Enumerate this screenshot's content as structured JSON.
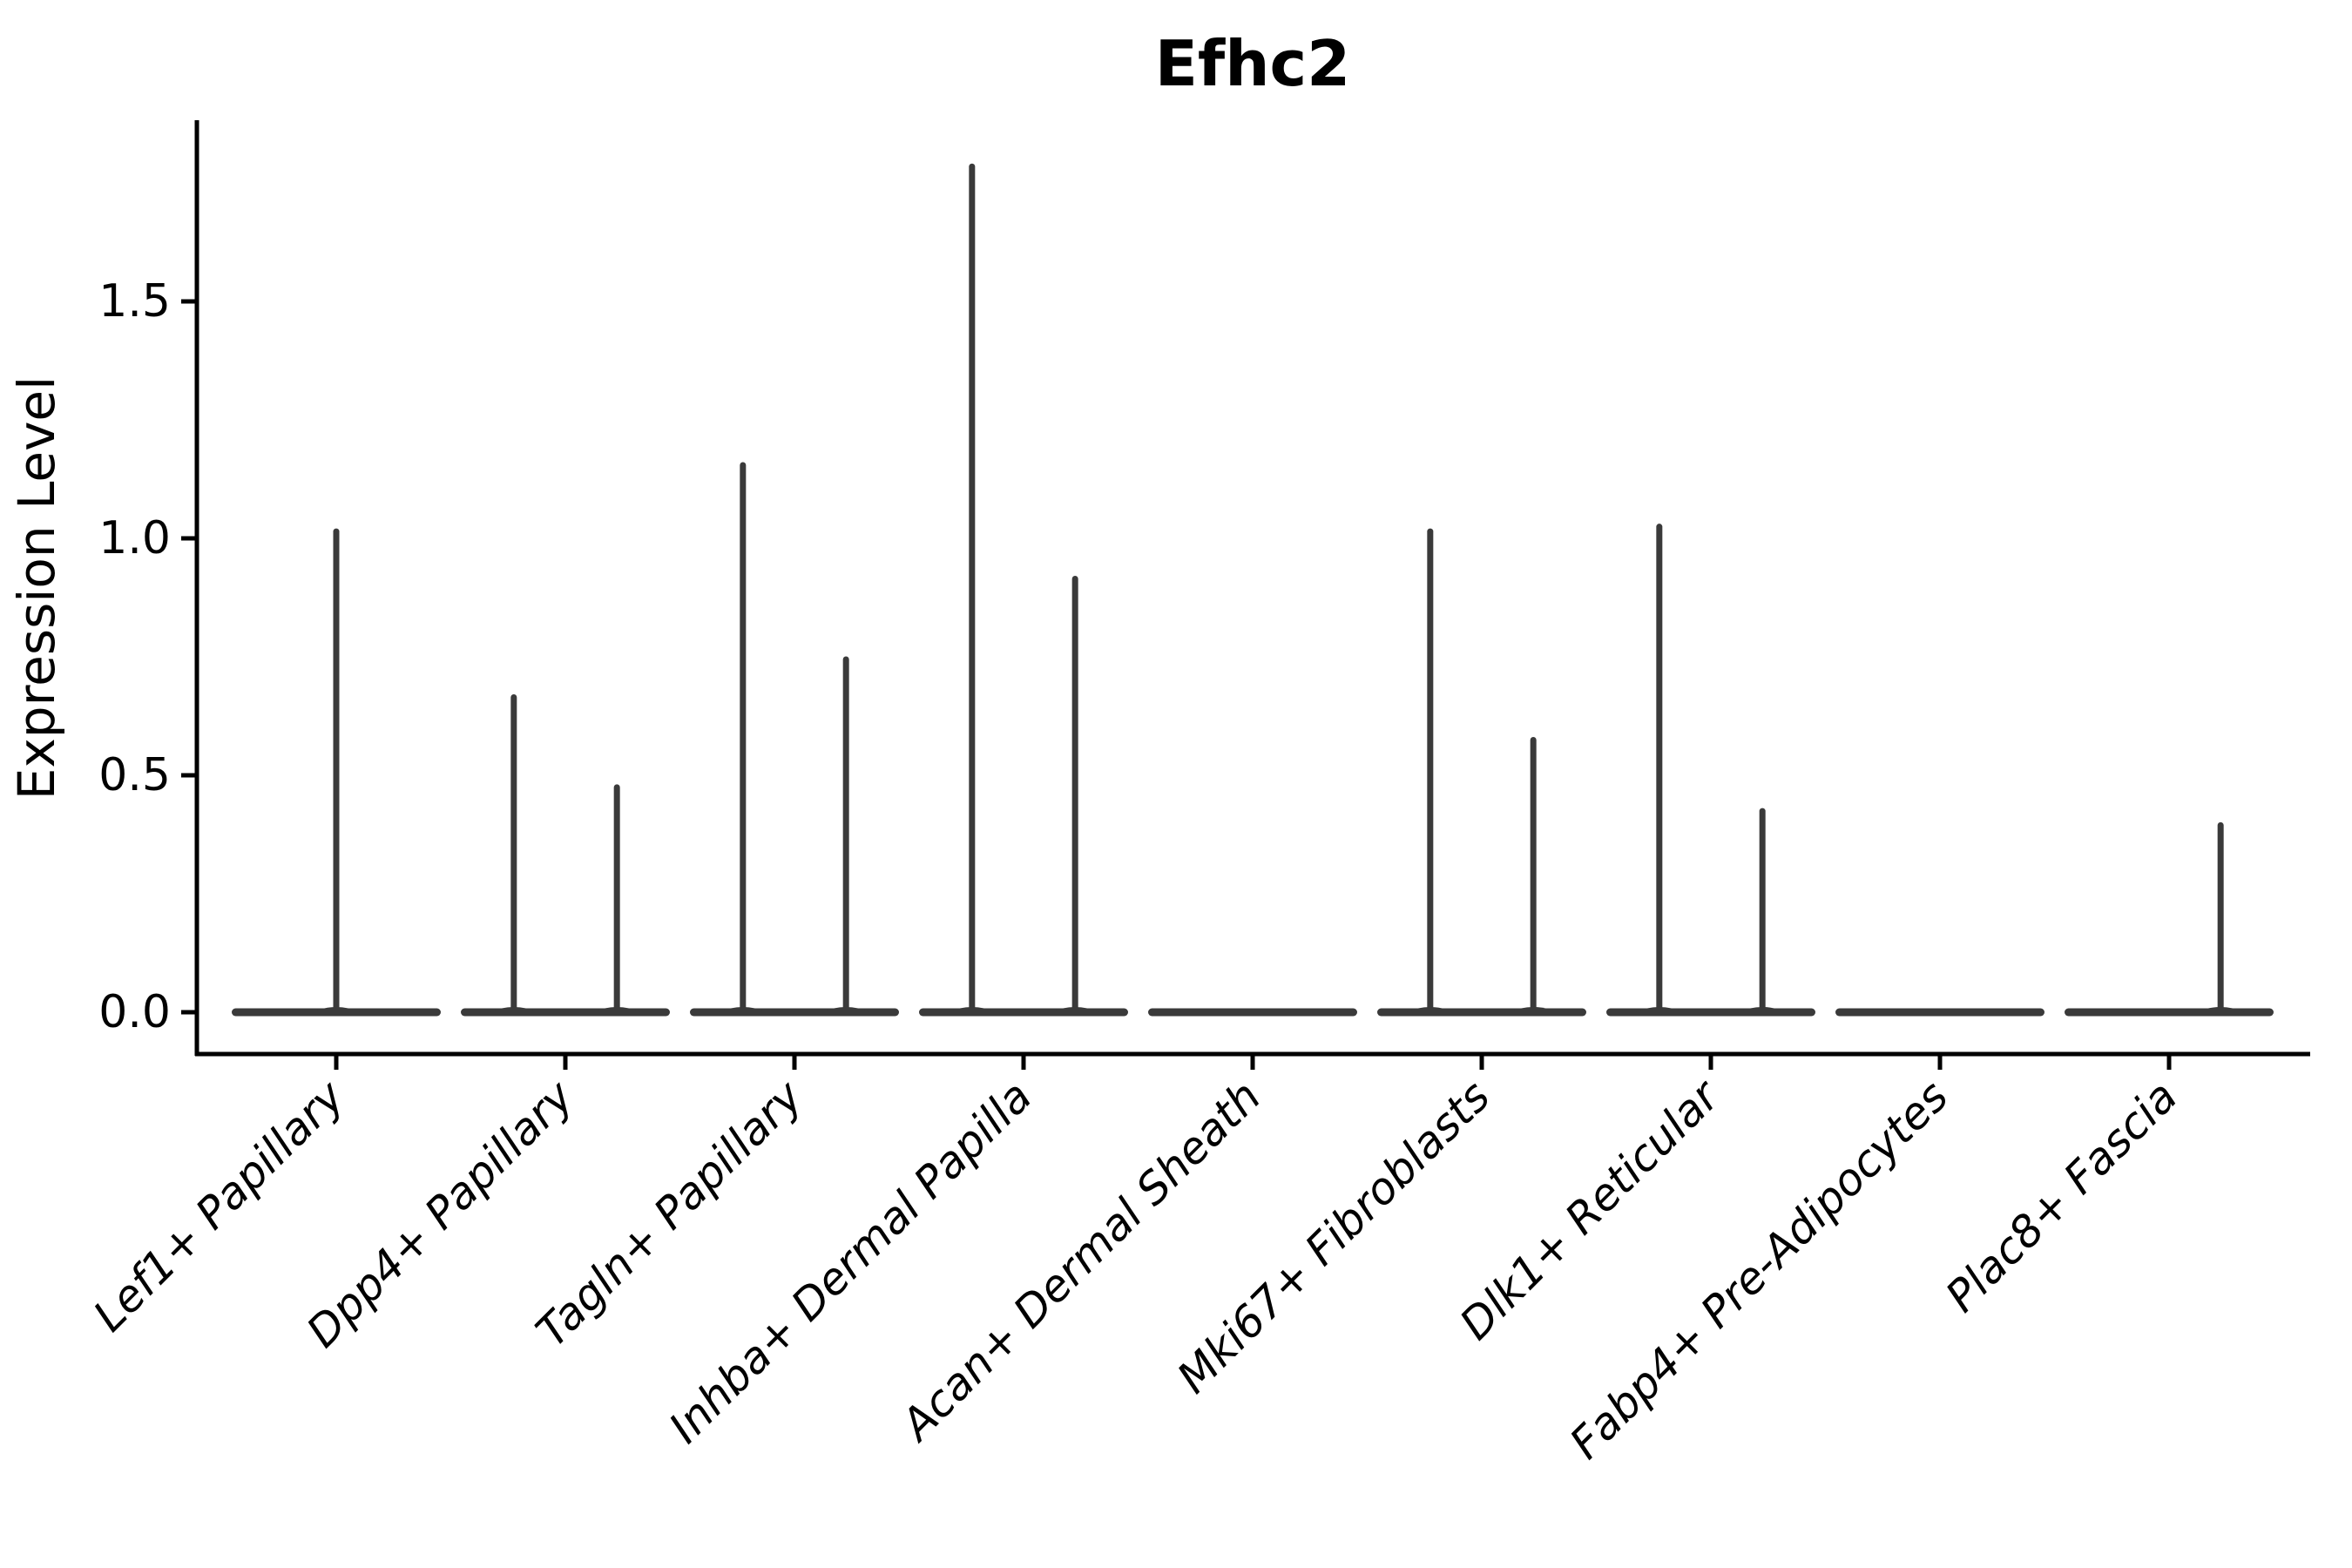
{
  "title": "Efhc2",
  "chart_data": {
    "type": "violin",
    "title": "Efhc2",
    "xlabel": "",
    "ylabel": "Expression Level",
    "ylim": [
      0,
      1.87
    ],
    "grid": false,
    "legend": "none",
    "y_ticks": [
      {
        "label": "0.0",
        "value": 0.0
      },
      {
        "label": "0.5",
        "value": 0.5
      },
      {
        "label": "1.0",
        "value": 1.0
      },
      {
        "label": "1.5",
        "value": 1.5
      }
    ],
    "categories": [
      "Lef1+ Papillary",
      "Dpp4+ Papillary",
      "Tagln+ Papillary",
      "Inhba+ Dermal Papilla",
      "Acan+ Dermal Sheath",
      "Mki67+ Fibroblasts",
      "Dlk1+ Reticular",
      "Fabp4+ Pre-Adipocytes",
      "Plac8+ Fascia"
    ],
    "groups": [
      {
        "category": "Lef1+ Papillary",
        "baseline_value": 0.0,
        "violins": [
          {
            "offset": 0.0,
            "max": 1.02
          }
        ]
      },
      {
        "category": "Dpp4+ Papillary",
        "baseline_value": 0.0,
        "violins": [
          {
            "offset": -0.225,
            "max": 0.67
          },
          {
            "offset": 0.225,
            "max": 0.48
          }
        ]
      },
      {
        "category": "Tagln+ Papillary",
        "baseline_value": 0.0,
        "violins": [
          {
            "offset": -0.225,
            "max": 1.16
          },
          {
            "offset": 0.225,
            "max": 0.75
          }
        ]
      },
      {
        "category": "Inhba+ Dermal Papilla",
        "baseline_value": 0.0,
        "violins": [
          {
            "offset": -0.225,
            "max": 1.79
          },
          {
            "offset": 0.225,
            "max": 0.92
          }
        ]
      },
      {
        "category": "Acan+ Dermal Sheath",
        "baseline_value": 0.0,
        "violins": []
      },
      {
        "category": "Mki67+ Fibroblasts",
        "baseline_value": 0.0,
        "violins": [
          {
            "offset": -0.225,
            "max": 1.02
          },
          {
            "offset": 0.225,
            "max": 0.58
          }
        ]
      },
      {
        "category": "Dlk1+ Reticular",
        "baseline_value": 0.0,
        "violins": [
          {
            "offset": -0.225,
            "max": 1.03
          },
          {
            "offset": 0.225,
            "max": 0.43
          }
        ]
      },
      {
        "category": "Fabp4+ Pre-Adipocytes",
        "baseline_value": 0.0,
        "violins": []
      },
      {
        "category": "Plac8+ Fascia",
        "baseline_value": 0.0,
        "violins": [
          {
            "offset": 0.225,
            "max": 0.4
          }
        ]
      }
    ],
    "style": {
      "violin_color": "#3a3a3a",
      "axis_color": "#000000",
      "background": "#ffffff"
    }
  }
}
